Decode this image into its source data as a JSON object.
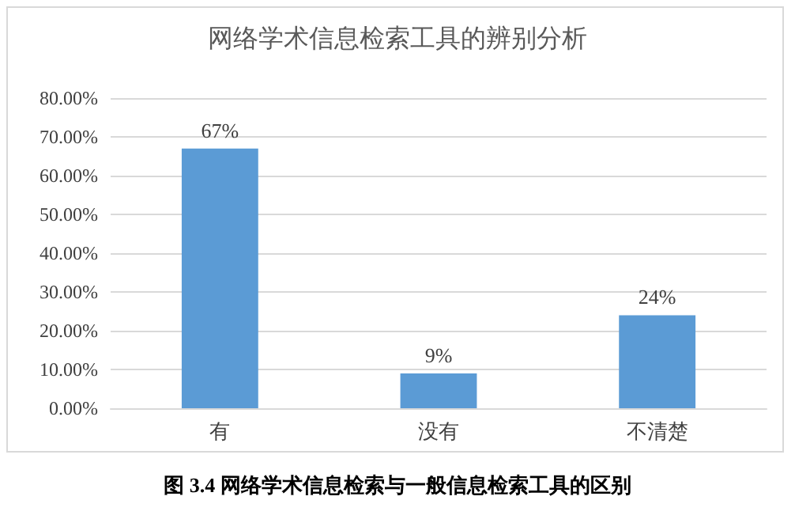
{
  "chart_data": {
    "type": "bar",
    "title": "网络学术信息检索工具的辨别分析",
    "categories": [
      "有",
      "没有",
      "不清楚"
    ],
    "values": [
      67,
      9,
      24
    ],
    "color": "#5b9bd5",
    "value_labels": [
      "67%",
      "9%",
      "24%"
    ],
    "ylim": [
      0,
      80
    ],
    "yticks": [
      {
        "value": 0,
        "label": "0.00%"
      },
      {
        "value": 10,
        "label": "10.00%"
      },
      {
        "value": 20,
        "label": "20.00%"
      },
      {
        "value": 30,
        "label": "30.00%"
      },
      {
        "value": 40,
        "label": "40.00%"
      },
      {
        "value": 50,
        "label": "50.00%"
      },
      {
        "value": 60,
        "label": "60.00%"
      },
      {
        "value": 70,
        "label": "70.00%"
      },
      {
        "value": 80,
        "label": "80.00%"
      }
    ],
    "grid": "y",
    "annotations": [
      "图 3.4  网络学术信息检索与一般信息检索工具的区别"
    ]
  }
}
